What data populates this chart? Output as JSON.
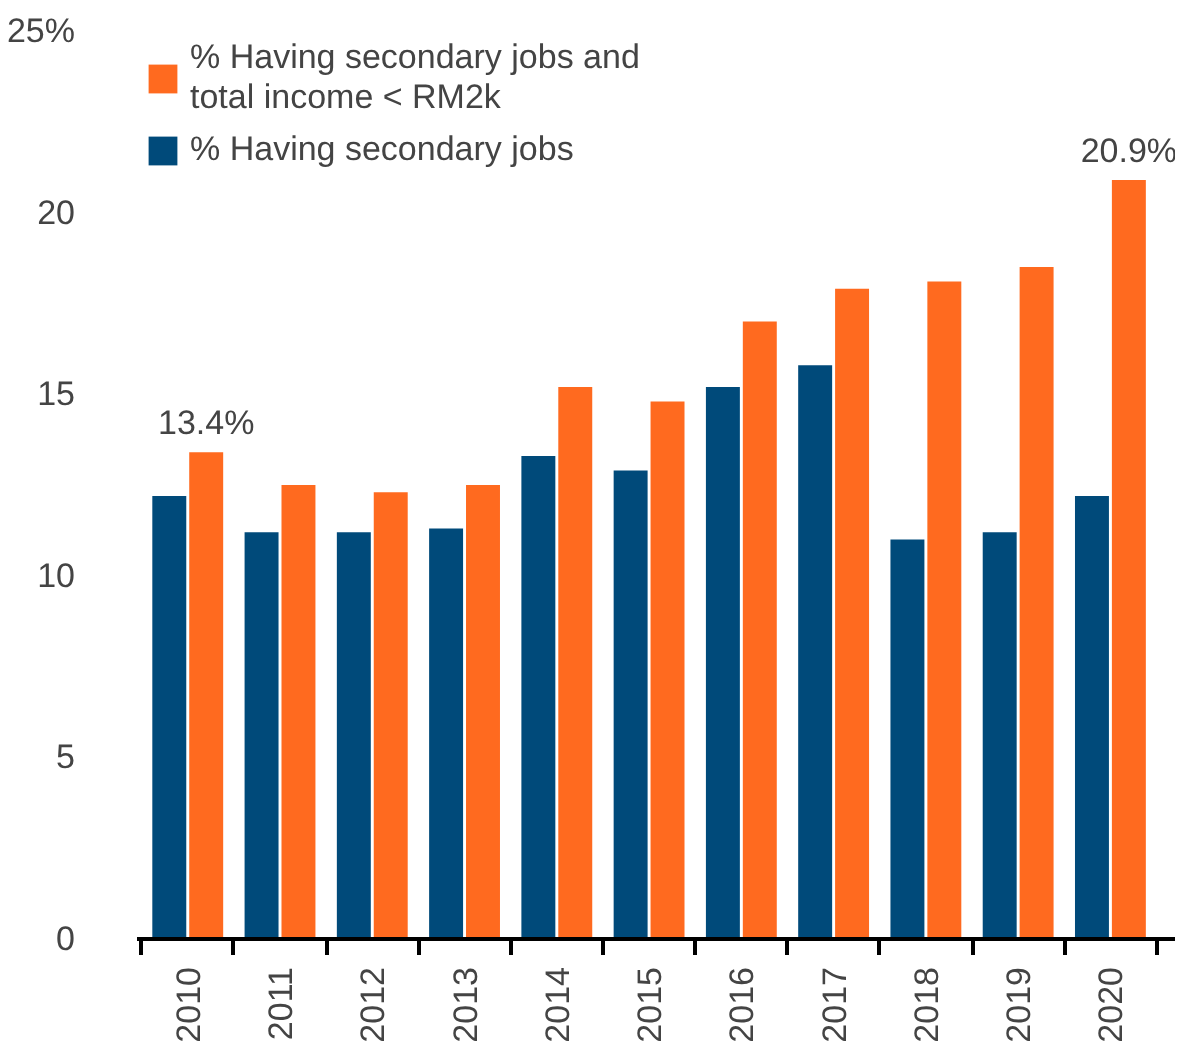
{
  "chart_data": {
    "type": "bar",
    "categories": [
      "2010",
      "2011",
      "2012",
      "2013",
      "2014",
      "2015",
      "2016",
      "2017",
      "2018",
      "2019",
      "2020"
    ],
    "series": [
      {
        "name": "% Having secondary jobs",
        "color": "#004a7a",
        "values": [
          12.2,
          11.2,
          11.2,
          11.3,
          13.3,
          12.9,
          15.2,
          15.8,
          11.0,
          11.2,
          12.2
        ]
      },
      {
        "name": "% Having secondary jobs and\ntotal income < RM2k",
        "color": "#ff6a1f",
        "values": [
          13.4,
          12.5,
          12.3,
          12.5,
          15.2,
          14.8,
          17.0,
          17.9,
          18.1,
          18.5,
          20.9
        ],
        "value_labels": [
          "13.4%",
          null,
          null,
          null,
          null,
          null,
          null,
          null,
          null,
          null,
          "20.9%"
        ]
      }
    ],
    "ylim": [
      0,
      25
    ],
    "yticks": [
      0,
      5,
      10,
      15,
      20,
      {
        "value": 25,
        "label": "25%"
      }
    ],
    "grid": false,
    "legend": "top left"
  }
}
